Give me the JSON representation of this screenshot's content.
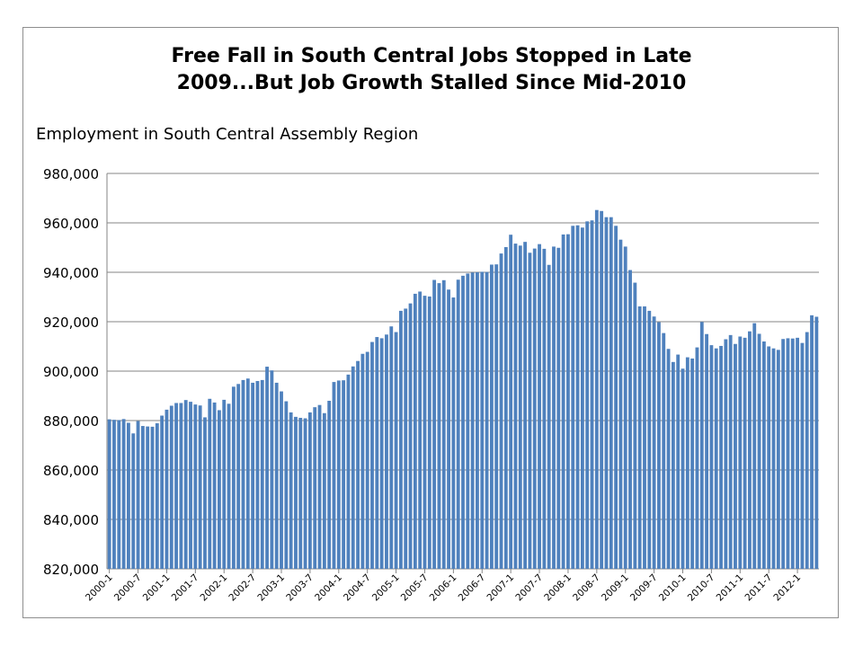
{
  "chart_data": {
    "type": "bar",
    "title_lines": [
      "Free Fall in South Central Jobs Stopped in Late",
      "2009...But Job Growth Stalled Since Mid-2010"
    ],
    "subtitle": "Employment in South Central Assembly Region",
    "xlabel": "",
    "ylabel": "",
    "ylim": [
      820000,
      980000
    ],
    "y_ticks": [
      820000,
      840000,
      860000,
      880000,
      900000,
      920000,
      940000,
      960000,
      980000
    ],
    "y_tick_labels": [
      "820,000",
      "840,000",
      "860,000",
      "880,000",
      "900,000",
      "920,000",
      "940,000",
      "960,000",
      "980,000"
    ],
    "x_tick_labels": [
      "2000-1",
      "2000-7",
      "2001-1",
      "2001-7",
      "2002-1",
      "2002-7",
      "2003-1",
      "2003-7",
      "2004-1",
      "2004-7",
      "2005-1",
      "2005-7",
      "2006-1",
      "2006-7",
      "2007-1",
      "2007-7",
      "2008-1",
      "2008-7",
      "2009-1",
      "2009-7",
      "2010-1",
      "2010-7",
      "2011-1",
      "2011-7",
      "2012-1"
    ],
    "x_tick_every": 6,
    "grid": true,
    "legend": "none",
    "bar_color": "#4f81bd",
    "series": [
      {
        "values": [
          880500,
          880300,
          880200,
          880600,
          879100,
          874800,
          879800,
          877800,
          877600,
          877500,
          878900,
          882000,
          884400,
          886000,
          887100,
          887100,
          888300,
          887600,
          886500,
          886100,
          881300,
          888800,
          887300,
          884200,
          888400,
          886800,
          893700,
          894800,
          896400,
          897000,
          895300,
          896000,
          896400,
          901800,
          900300,
          895300,
          891800,
          887800,
          883300,
          881500,
          881100,
          880900,
          883300,
          885400,
          886300,
          883000,
          888000,
          895600,
          896200,
          896300,
          898600,
          901900,
          904100,
          907000,
          907800,
          911800,
          913800,
          913300,
          914800,
          918100,
          915800,
          924400,
          925300,
          927400,
          931300,
          932200,
          930500,
          930200,
          936900,
          935600,
          936800,
          933000,
          929800,
          937000,
          938600,
          939500,
          939900,
          940000,
          940200,
          940100,
          943100,
          943200,
          947600,
          950200,
          955200,
          951600,
          950800,
          952300,
          947900,
          949600,
          951400,
          949500,
          943000,
          950400,
          949900,
          955300,
          955400,
          958800,
          959000,
          958100,
          960600,
          961000,
          965200,
          964800,
          962300,
          962300,
          958800,
          953200,
          950400,
          940900,
          935800,
          926200,
          926200,
          924400,
          922100,
          919800,
          915400,
          909000,
          903700,
          906700,
          901000,
          905600,
          905100,
          909600,
          919900,
          915000,
          910500,
          909200,
          910200,
          912900,
          914600,
          911000,
          914000,
          913500,
          916100,
          919400,
          915100,
          912000,
          910000,
          909200,
          908600,
          913000,
          913300,
          913200,
          913500,
          911400,
          915800,
          922600,
          922000
        ]
      }
    ]
  }
}
